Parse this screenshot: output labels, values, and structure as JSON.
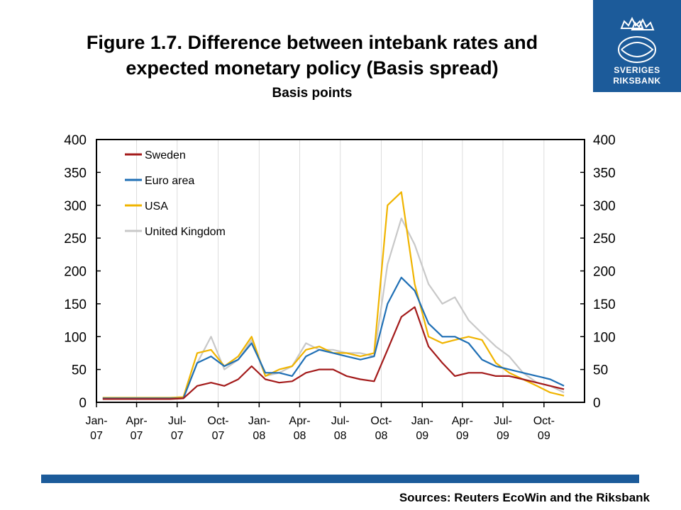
{
  "header": {
    "title_line1": "Figure 1.7. Difference between intebank rates and",
    "title_line2": "expected monetary policy (Basis spread)",
    "subtitle": "Basis points"
  },
  "logo": {
    "line1": "SVERIGES",
    "line2": "RIKSBANK"
  },
  "footer": {
    "sources": "Sources: Reuters EcoWin and the Riksbank"
  },
  "chart_data": {
    "type": "line",
    "title": "Figure 1.7. Difference between intebank rates and expected monetary policy (Basis spread)",
    "ylabel": "Basis points",
    "ylim": [
      0,
      400
    ],
    "yticks": [
      0,
      50,
      100,
      150,
      200,
      250,
      300,
      350,
      400
    ],
    "x_range": [
      "2007-01-01",
      "2009-12-31"
    ],
    "xtick_labels": [
      [
        "Jan-",
        "07"
      ],
      [
        "Apr-",
        "07"
      ],
      [
        "Jul-",
        "07"
      ],
      [
        "Oct-",
        "07"
      ],
      [
        "Jan-",
        "08"
      ],
      [
        "Apr-",
        "08"
      ],
      [
        "Jul-",
        "08"
      ],
      [
        "Oct-",
        "08"
      ],
      [
        "Jan-",
        "09"
      ],
      [
        "Apr-",
        "09"
      ],
      [
        "Jul-",
        "09"
      ],
      [
        "Oct-",
        "09"
      ]
    ],
    "grid": "vertical",
    "legend_position": "top-left",
    "x": [
      "2007-01",
      "2007-02",
      "2007-03",
      "2007-04",
      "2007-05",
      "2007-06",
      "2007-07",
      "2007-08",
      "2007-09",
      "2007-10",
      "2007-11",
      "2007-12",
      "2008-01",
      "2008-02",
      "2008-03",
      "2008-04",
      "2008-05",
      "2008-06",
      "2008-07",
      "2008-08",
      "2008-09",
      "2008-10",
      "2008-11",
      "2008-12",
      "2009-01",
      "2009-02",
      "2009-03",
      "2009-04",
      "2009-05",
      "2009-06",
      "2009-07",
      "2009-08",
      "2009-09",
      "2009-10",
      "2009-11"
    ],
    "series": [
      {
        "name": "Sweden",
        "color": "#a31a1a",
        "values": [
          5,
          5,
          5,
          5,
          5,
          5,
          6,
          25,
          30,
          25,
          35,
          55,
          35,
          30,
          32,
          45,
          50,
          50,
          40,
          35,
          32,
          80,
          130,
          145,
          85,
          60,
          40,
          45,
          45,
          40,
          40,
          35,
          30,
          25,
          20
        ]
      },
      {
        "name": "Euro area",
        "color": "#1f6fb5",
        "values": [
          6,
          6,
          6,
          6,
          6,
          6,
          6,
          60,
          70,
          55,
          65,
          90,
          45,
          45,
          40,
          70,
          80,
          75,
          70,
          65,
          70,
          150,
          190,
          170,
          120,
          100,
          100,
          90,
          65,
          55,
          50,
          45,
          40,
          35,
          25
        ]
      },
      {
        "name": "USA",
        "color": "#f0b400",
        "values": [
          7,
          7,
          7,
          7,
          7,
          7,
          8,
          75,
          80,
          55,
          70,
          100,
          40,
          50,
          55,
          80,
          85,
          75,
          75,
          70,
          75,
          300,
          320,
          180,
          100,
          90,
          95,
          100,
          95,
          60,
          45,
          35,
          25,
          15,
          10
        ]
      },
      {
        "name": "United Kingdom",
        "color": "#c8c8c8",
        "values": [
          7,
          7,
          7,
          7,
          7,
          7,
          8,
          60,
          100,
          50,
          65,
          95,
          40,
          45,
          55,
          90,
          80,
          80,
          75,
          75,
          70,
          210,
          280,
          240,
          180,
          150,
          160,
          125,
          105,
          85,
          70,
          45,
          30,
          25,
          15
        ]
      }
    ]
  }
}
